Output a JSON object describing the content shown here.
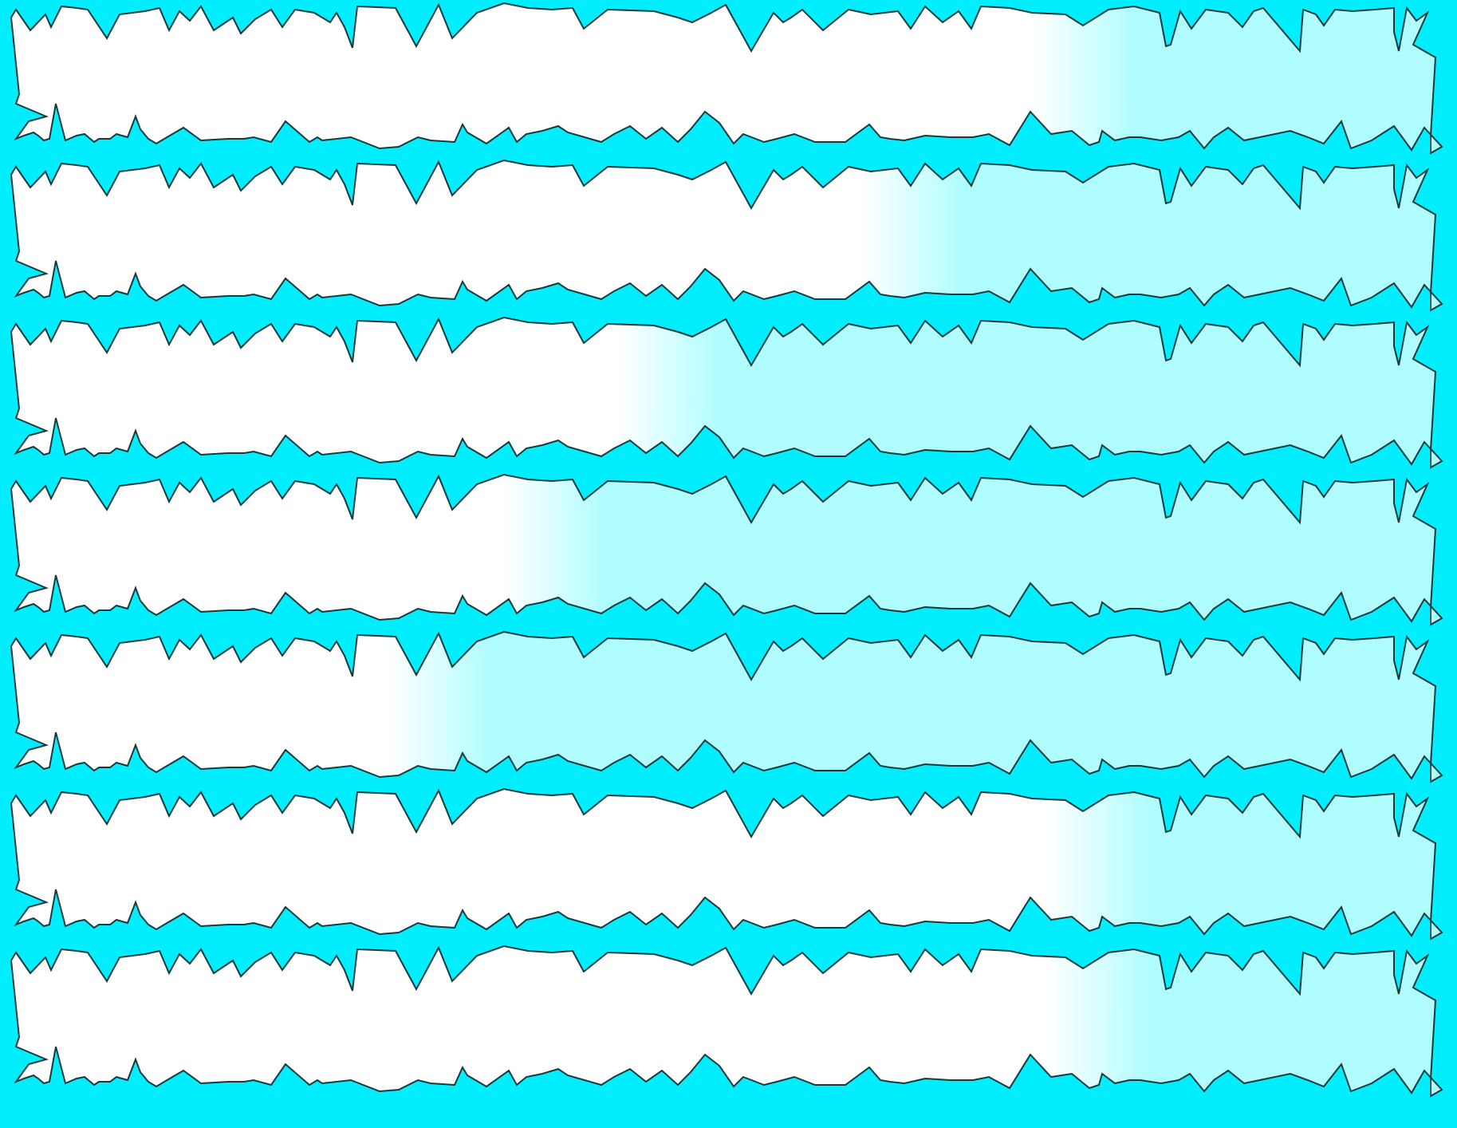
{
  "colors": {
    "background": "#00eeff",
    "fill_unfilled": "#ffffff",
    "fill_filled": "#b0fdff",
    "outline": "#1a3a3a"
  },
  "bars": [
    {
      "name": "bar-1",
      "fill_fraction": 0.25
    },
    {
      "name": "bar-2",
      "fill_fraction": 0.37
    },
    {
      "name": "bar-3",
      "fill_fraction": 0.54
    },
    {
      "name": "bar-4",
      "fill_fraction": 0.62
    },
    {
      "name": "bar-5",
      "fill_fraction": 0.7
    },
    {
      "name": "bar-6",
      "fill_fraction": 0.24
    },
    {
      "name": "bar-7",
      "fill_fraction": 0.24
    }
  ]
}
